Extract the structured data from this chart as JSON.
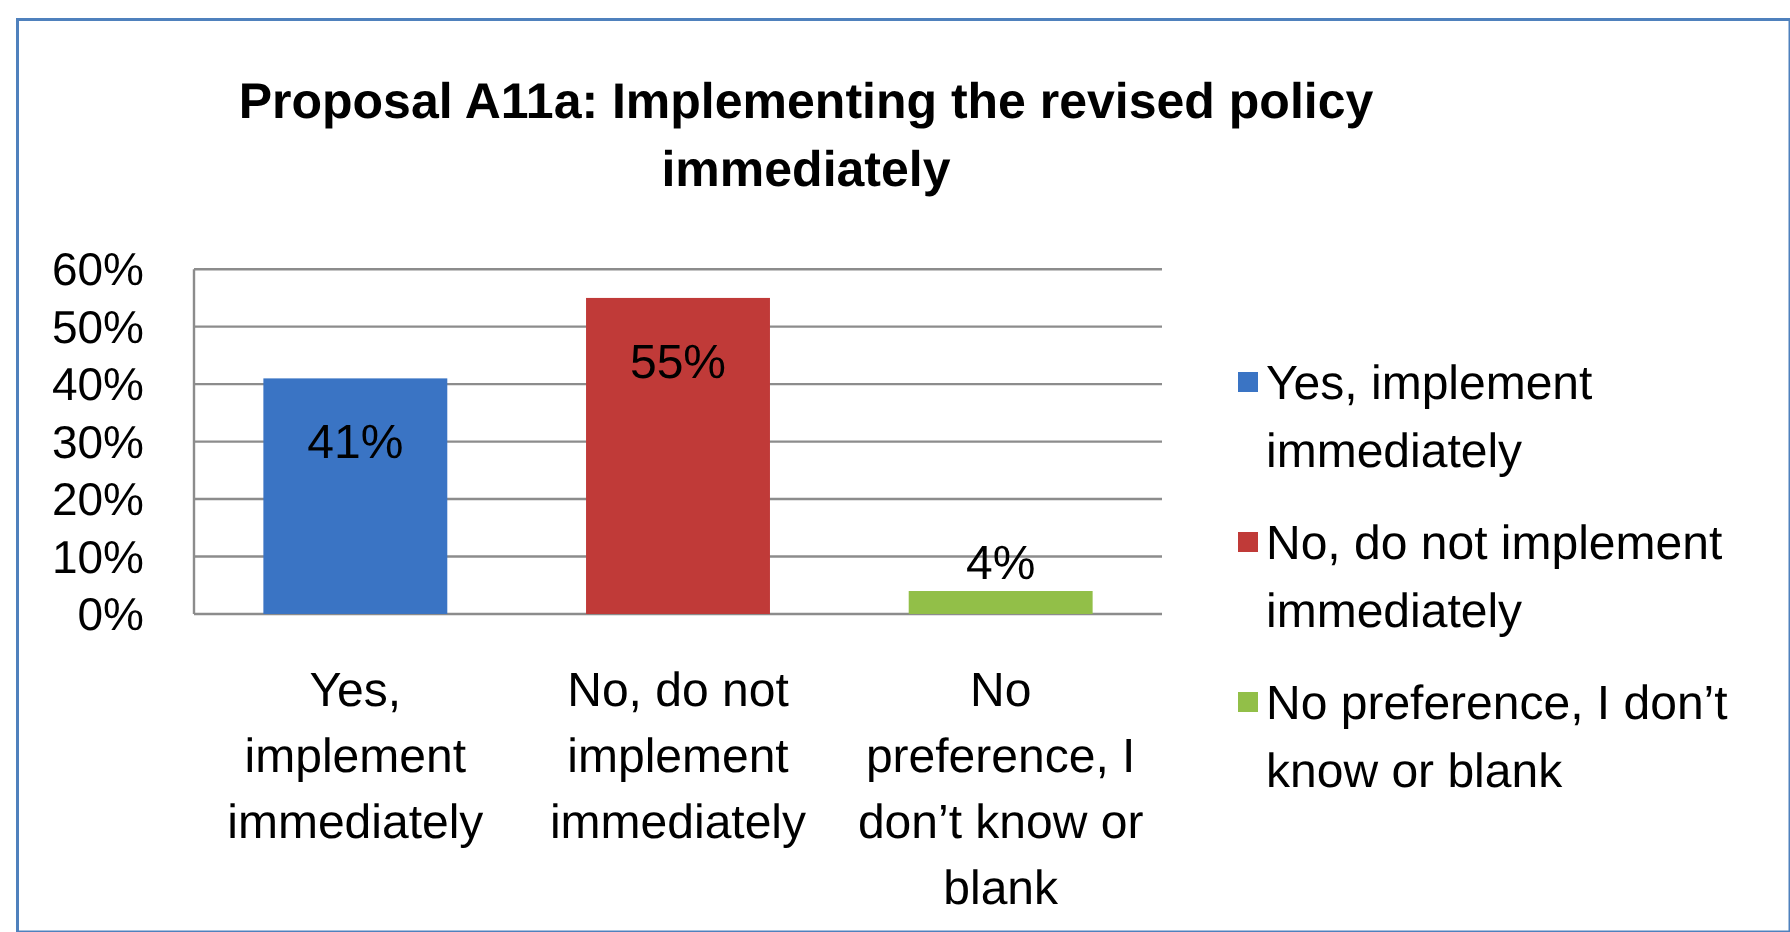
{
  "chart_data": {
    "type": "bar",
    "title": "Proposal A11a: Implementing the revised policy immediately",
    "categories": [
      "Yes,\nimplement\nimmediately",
      "No, do not\nimplement\nimmediately",
      "No\npreference, I\ndon’t know or\nblank"
    ],
    "stacked": true,
    "series": [
      {
        "name": "Yes, implement immediately",
        "color": "#3a74c4",
        "values": [
          41,
          null,
          null
        ],
        "value_labels": [
          "41%",
          null,
          null
        ]
      },
      {
        "name": "No, do not implement immediately",
        "color": "#c03a38",
        "values": [
          null,
          55,
          null
        ],
        "value_labels": [
          null,
          "55%",
          null
        ]
      },
      {
        "name": "No preference, I don’t know or blank",
        "color": "#92bf48",
        "values": [
          null,
          null,
          4
        ],
        "value_labels": [
          null,
          null,
          "4%"
        ]
      }
    ],
    "ylim": [
      0,
      60
    ],
    "yticks": [
      {
        "value": 0,
        "label": "0%"
      },
      {
        "value": 10,
        "label": "10%"
      },
      {
        "value": 20,
        "label": "20%"
      },
      {
        "value": 30,
        "label": "30%"
      },
      {
        "value": 40,
        "label": "40%"
      },
      {
        "value": 50,
        "label": "50%"
      },
      {
        "value": 60,
        "label": "60%"
      }
    ],
    "grid": true,
    "legend": "right"
  }
}
